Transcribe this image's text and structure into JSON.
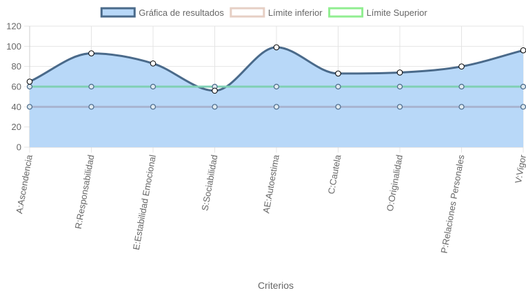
{
  "chart_data": {
    "type": "line",
    "categories": [
      "A:Ascendencia",
      "R:Responsabilidad",
      "E:Estabilidad Emocional",
      "S:Sociabilidad",
      "AE:Autoestima",
      "C:Cautela",
      "O:Originalidad",
      "P:Relaciones Personales",
      "V:Vigor"
    ],
    "series": [
      {
        "name": "Gráfica de resultados",
        "values": [
          65,
          93,
          83,
          56,
          99,
          73,
          74,
          80,
          96
        ],
        "stroke": "#4a6a8a",
        "fill": "#b8d8f8",
        "legend_fill": "#b8d8f8",
        "legend_stroke": "#4a6a8a",
        "filled": true
      },
      {
        "name": "Límite inferior",
        "values": [
          40,
          40,
          40,
          40,
          40,
          40,
          40,
          40,
          40
        ],
        "stroke": "#a8b4d0",
        "legend_fill": "#ffffff",
        "legend_stroke": "#e6cfc4",
        "filled": false
      },
      {
        "name": "Límite Superior",
        "values": [
          60,
          60,
          60,
          60,
          60,
          60,
          60,
          60,
          60
        ],
        "stroke": "#7fd0b4",
        "legend_fill": "#ffffff",
        "legend_stroke": "#90ee90",
        "filled": false
      }
    ],
    "xlabel": "Criterios",
    "ylabel": "",
    "ylim": [
      0,
      120
    ],
    "yticks": [
      0,
      20,
      40,
      60,
      80,
      100,
      120
    ],
    "grid": true,
    "legend_position": "top"
  }
}
